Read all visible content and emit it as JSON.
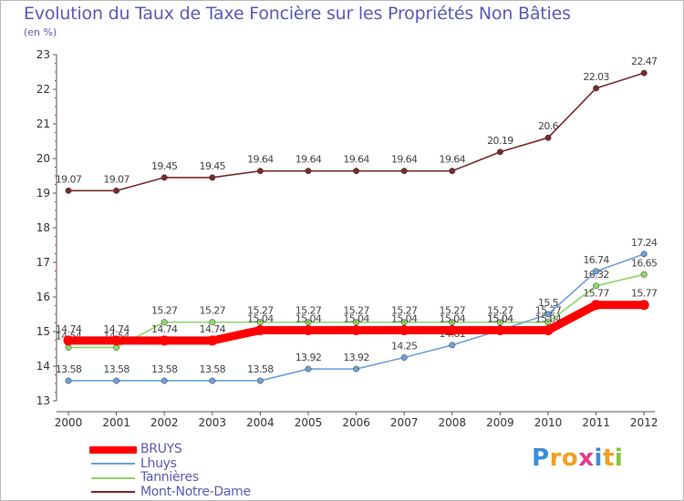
{
  "title": "Evolution du Taux de Taxe Foncière sur les Propriétés Non Bâties",
  "subtitle": "(en %)",
  "logo": {
    "letters": [
      "P",
      "r",
      "o",
      "x",
      "i",
      "t",
      "i"
    ],
    "colors": [
      "#3a8fd6",
      "#f0a020",
      "#f0a020",
      "#e23a8c",
      "#3a8fd6",
      "#f0a020",
      "#86c440"
    ]
  },
  "chart_data": {
    "type": "line",
    "title": "Evolution du Taux de Taxe Foncière sur les Propriétés Non Bâties",
    "ylabel": "(en %)",
    "xlabel": "",
    "x": [
      "2000",
      "2001",
      "2002",
      "2003",
      "2004",
      "2005",
      "2006",
      "2007",
      "2008",
      "2009",
      "2010",
      "2011",
      "2012"
    ],
    "ylim": [
      13,
      23
    ],
    "yticks": [
      13,
      14,
      15,
      16,
      17,
      18,
      19,
      20,
      21,
      22,
      23
    ],
    "grid": false,
    "legend": "bottom-left",
    "series": [
      {
        "name": "Mont-Notre-Dame",
        "color": "#7a2a2a",
        "values": [
          19.07,
          19.07,
          19.45,
          19.45,
          19.64,
          19.64,
          19.64,
          19.64,
          19.64,
          20.19,
          20.6,
          22.03,
          22.47
        ],
        "labels": [
          "19.07",
          "19.07",
          "19.45",
          "19.45",
          "19.64",
          "19.64",
          "19.64",
          "19.64",
          "19.64",
          "20.19",
          "20.6",
          "22.03",
          "22.47"
        ]
      },
      {
        "name": "Tannières",
        "color": "#8fd86a",
        "values": [
          14.54,
          14.54,
          15.27,
          15.27,
          15.27,
          15.27,
          15.27,
          15.27,
          15.27,
          15.27,
          15.27,
          16.32,
          16.65
        ],
        "labels": [
          "14.54",
          "14.54",
          "15.27",
          "15.27",
          "15.27",
          "15.27",
          "15.27",
          "15.27",
          "15.27",
          "15.27",
          "15.27",
          "16.32",
          "16.65"
        ]
      },
      {
        "name": "Lhuys",
        "color": "#6fa0d8",
        "values": [
          13.58,
          13.58,
          13.58,
          13.58,
          13.58,
          13.92,
          13.92,
          14.25,
          14.61,
          15.04,
          15.5,
          16.74,
          17.24
        ],
        "labels": [
          "13.58",
          "13.58",
          "13.58",
          "13.58",
          "13.58",
          "13.92",
          "13.92",
          "14.25",
          "14.61",
          "15.04",
          "15.5",
          "16.74",
          "17.24"
        ]
      },
      {
        "name": "BRUYS",
        "color": "#ff0000",
        "values": [
          14.74,
          14.74,
          14.74,
          14.74,
          15.04,
          15.04,
          15.04,
          15.04,
          15.04,
          15.04,
          15.04,
          15.77,
          15.77
        ],
        "labels": [
          "14.74",
          "14.74",
          "14.74",
          "14.74",
          "15.04",
          "15.04",
          "15.04",
          "15.04",
          "15.04",
          "15.04",
          "15.04",
          "15.77",
          "15.77"
        ]
      }
    ],
    "legend_order": [
      "BRUYS",
      "Lhuys",
      "Tannières",
      "Mont-Notre-Dame"
    ]
  }
}
